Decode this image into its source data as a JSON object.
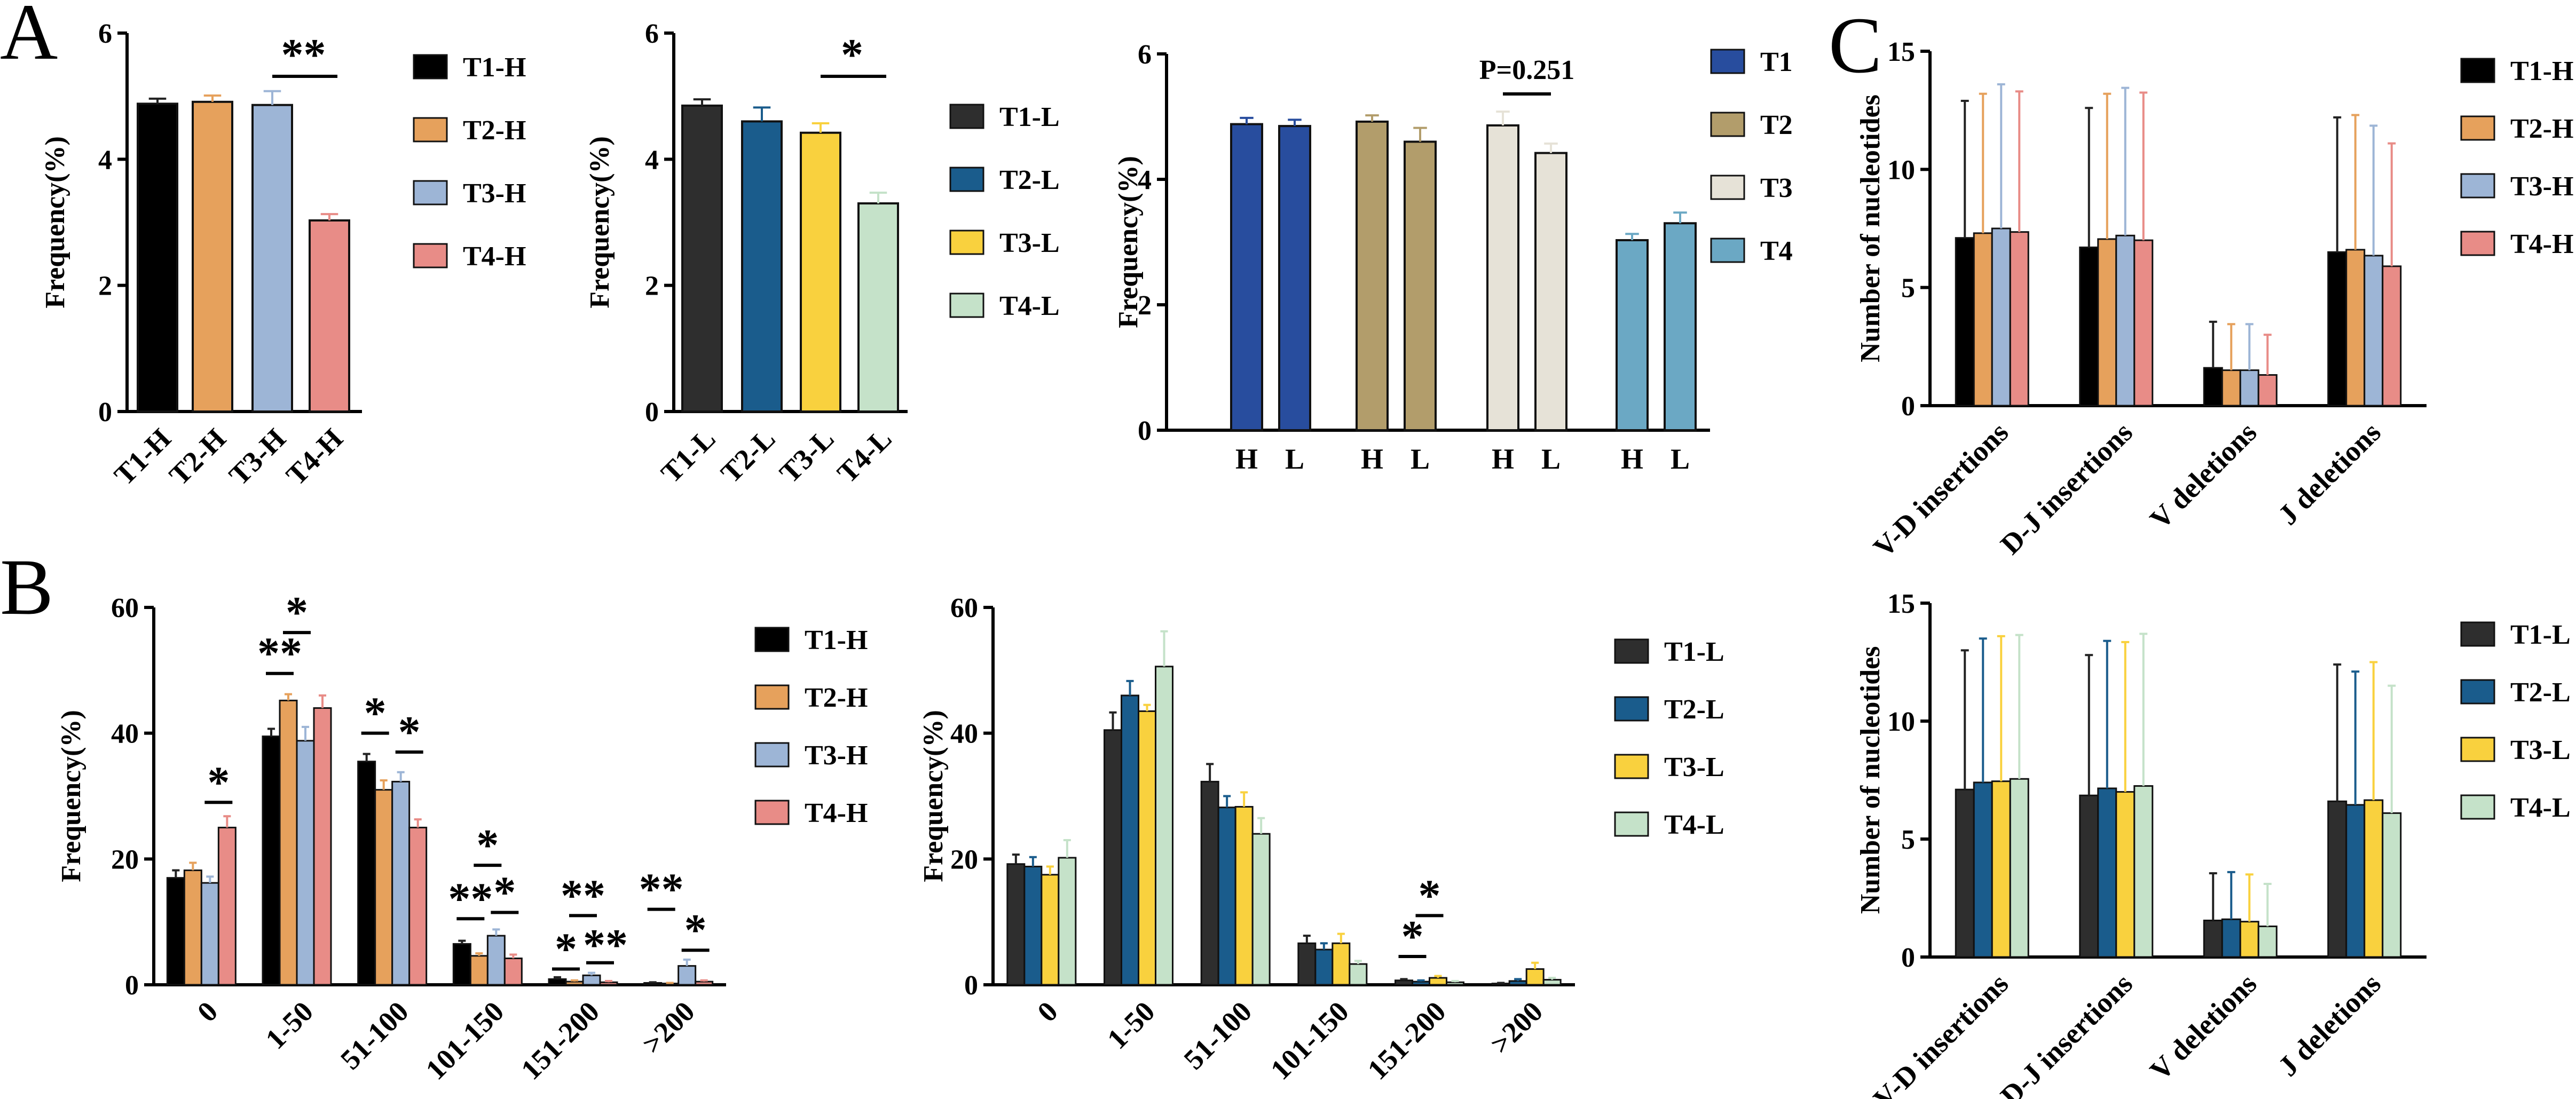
{
  "panel_letters": {
    "a": "A",
    "b": "B",
    "c": "C"
  },
  "colors": {
    "T1-H": "#000000",
    "T2-H": "#E6A15C",
    "T3-H": "#9DB5D6",
    "T4-H": "#E88C87",
    "T1-L": "#2E2E2E",
    "T2-L": "#1A5C8C",
    "T3-L": "#F9D13E",
    "T4-L": "#C5E2C9",
    "T1": "#284D9E",
    "T2": "#B29D6B",
    "T3": "#E6E2D7",
    "T4": "#6BA8C4"
  },
  "chart_data": [
    {
      "id": "a1",
      "type": "bar",
      "ylabel": "Frequency(%)",
      "ylim": [
        0,
        6
      ],
      "yticks": [
        0,
        2,
        4,
        6
      ],
      "categories": [
        "T1-H",
        "T2-H",
        "T3-H",
        "T4-H"
      ],
      "values": [
        4.88,
        4.91,
        4.86,
        3.03
      ],
      "errors": [
        0.08,
        0.1,
        0.22,
        0.1
      ],
      "legend": [
        "T1-H",
        "T2-H",
        "T3-H",
        "T4-H"
      ],
      "annotations": [
        {
          "text": "**",
          "between": [
            2,
            3
          ]
        }
      ]
    },
    {
      "id": "a2",
      "type": "bar",
      "ylabel": "Frequency(%)",
      "ylim": [
        0,
        6
      ],
      "yticks": [
        0,
        2,
        4,
        6
      ],
      "categories": [
        "T1-L",
        "T2-L",
        "T3-L",
        "T4-L"
      ],
      "values": [
        4.85,
        4.6,
        4.42,
        3.3
      ],
      "errors": [
        0.1,
        0.22,
        0.15,
        0.17
      ],
      "legend": [
        "T1-L",
        "T2-L",
        "T3-L",
        "T4-L"
      ],
      "annotations": [
        {
          "text": "*",
          "between": [
            2,
            3
          ]
        }
      ]
    },
    {
      "id": "a3",
      "type": "bar",
      "ylabel": "Frequency(%)",
      "ylim": [
        0,
        6
      ],
      "yticks": [
        0,
        2,
        4,
        6
      ],
      "groups": [
        {
          "name": "T1",
          "labels": [
            "H",
            "L"
          ],
          "values": [
            4.88,
            4.85
          ],
          "errors": [
            0.1,
            0.1
          ]
        },
        {
          "name": "T2",
          "labels": [
            "H",
            "L"
          ],
          "values": [
            4.92,
            4.6
          ],
          "errors": [
            0.1,
            0.22
          ]
        },
        {
          "name": "T3",
          "labels": [
            "H",
            "L"
          ],
          "values": [
            4.86,
            4.42
          ],
          "errors": [
            0.22,
            0.15
          ]
        },
        {
          "name": "T4",
          "labels": [
            "H",
            "L"
          ],
          "values": [
            3.03,
            3.3
          ],
          "errors": [
            0.1,
            0.17
          ]
        }
      ],
      "legend": [
        "T1",
        "T2",
        "T3",
        "T4"
      ],
      "annotations": [
        {
          "text": "P=0.251",
          "group": 2
        }
      ]
    },
    {
      "id": "b1",
      "type": "bar",
      "ylabel": "Frequency(%)",
      "ylim": [
        0,
        60
      ],
      "yticks": [
        0,
        20,
        40,
        60
      ],
      "categories": [
        "0",
        "1-50",
        "51-100",
        "101-150",
        "151-200",
        ">200"
      ],
      "series": [
        {
          "name": "T1-H",
          "values": [
            17,
            39.5,
            35.5,
            6.5,
            0.9,
            0.3
          ],
          "errors": [
            1.2,
            1.2,
            1.2,
            0.5,
            0.3,
            0.1
          ]
        },
        {
          "name": "T2-H",
          "values": [
            18.2,
            45.2,
            31,
            4.6,
            0.5,
            0.2
          ],
          "errors": [
            1.2,
            1,
            1.5,
            0.4,
            0.2,
            0.1
          ]
        },
        {
          "name": "T3-H",
          "values": [
            16.2,
            38.8,
            32.3,
            7.8,
            1.5,
            3
          ],
          "errors": [
            1,
            2.2,
            1.5,
            1,
            0.4,
            1
          ]
        },
        {
          "name": "T4-H",
          "values": [
            25,
            44,
            25,
            4.2,
            0.4,
            0.5
          ],
          "errors": [
            1.8,
            2,
            1.3,
            0.6,
            0.2,
            0.2
          ]
        }
      ],
      "legend": [
        "T1-H",
        "T2-H",
        "T3-H",
        "T4-H"
      ]
    },
    {
      "id": "b2",
      "type": "bar",
      "ylabel": "Frequency(%)",
      "ylim": [
        0,
        60
      ],
      "yticks": [
        0,
        20,
        40,
        60
      ],
      "categories": [
        "0",
        "1-50",
        "51-100",
        "101-150",
        "151-200",
        ">200"
      ],
      "series": [
        {
          "name": "T1-L",
          "values": [
            19.2,
            40.5,
            32.3,
            6.6,
            0.7,
            0.2
          ],
          "errors": [
            1.5,
            2.8,
            2.8,
            1.2,
            0.2,
            0.1
          ]
        },
        {
          "name": "T2-L",
          "values": [
            18.8,
            46,
            28.2,
            5.6,
            0.5,
            0.6
          ],
          "errors": [
            1.5,
            2.3,
            1.8,
            1,
            0.2,
            0.3
          ]
        },
        {
          "name": "T3-L",
          "values": [
            17.5,
            43.5,
            28.3,
            6.6,
            1.1,
            2.5
          ],
          "errors": [
            1.3,
            1,
            2.3,
            1.5,
            0.3,
            1
          ]
        },
        {
          "name": "T4-L",
          "values": [
            20.2,
            50.6,
            24,
            3.3,
            0.4,
            0.8
          ],
          "errors": [
            2.8,
            5.6,
            2.5,
            0.5,
            0.2,
            0.3
          ]
        }
      ],
      "legend": [
        "T1-L",
        "T2-L",
        "T3-L",
        "T4-L"
      ]
    },
    {
      "id": "c1",
      "type": "bar",
      "ylabel": "Number of nucleotides",
      "ylim": [
        0,
        15
      ],
      "yticks": [
        0,
        5,
        10,
        15
      ],
      "categories": [
        "V-D insertions",
        "D-J insertions",
        "V deletions",
        "J deletions"
      ],
      "series": [
        {
          "name": "T1-H",
          "values": [
            7.1,
            6.7,
            1.6,
            6.5
          ],
          "errors": [
            5.8,
            5.9,
            1.95,
            5.7
          ]
        },
        {
          "name": "T2-H",
          "values": [
            7.3,
            7.05,
            1.5,
            6.6
          ],
          "errors": [
            5.9,
            6.15,
            1.95,
            5.7
          ]
        },
        {
          "name": "T3-H",
          "values": [
            7.5,
            7.2,
            1.5,
            6.35
          ],
          "errors": [
            6.1,
            6.25,
            1.95,
            5.5
          ]
        },
        {
          "name": "T4-H",
          "values": [
            7.35,
            7.0,
            1.3,
            5.9
          ],
          "errors": [
            5.95,
            6.25,
            1.7,
            5.2
          ]
        }
      ],
      "legend": [
        "T1-H",
        "T2-H",
        "T3-H",
        "T4-H"
      ]
    },
    {
      "id": "c2",
      "type": "bar",
      "ylabel": "Number of nucleotides",
      "ylim": [
        0,
        15
      ],
      "yticks": [
        0,
        5,
        10,
        15
      ],
      "categories": [
        "V-D insertions",
        "D-J insertions",
        "V deletions",
        "J deletions"
      ],
      "series": [
        {
          "name": "T1-L",
          "values": [
            7.1,
            6.85,
            1.55,
            6.6
          ],
          "errors": [
            5.9,
            5.95,
            2.0,
            5.8
          ]
        },
        {
          "name": "T2-L",
          "values": [
            7.4,
            7.15,
            1.6,
            6.45
          ],
          "errors": [
            6.1,
            6.25,
            2.0,
            5.65
          ]
        },
        {
          "name": "T3-L",
          "values": [
            7.45,
            7.0,
            1.5,
            6.65
          ],
          "errors": [
            6.15,
            6.35,
            2.0,
            5.85
          ]
        },
        {
          "name": "T4-L",
          "values": [
            7.55,
            7.25,
            1.3,
            6.1
          ],
          "errors": [
            6.1,
            6.45,
            1.8,
            5.4
          ]
        }
      ],
      "legend": [
        "T1-L",
        "T2-L",
        "T3-L",
        "T4-L"
      ]
    }
  ]
}
